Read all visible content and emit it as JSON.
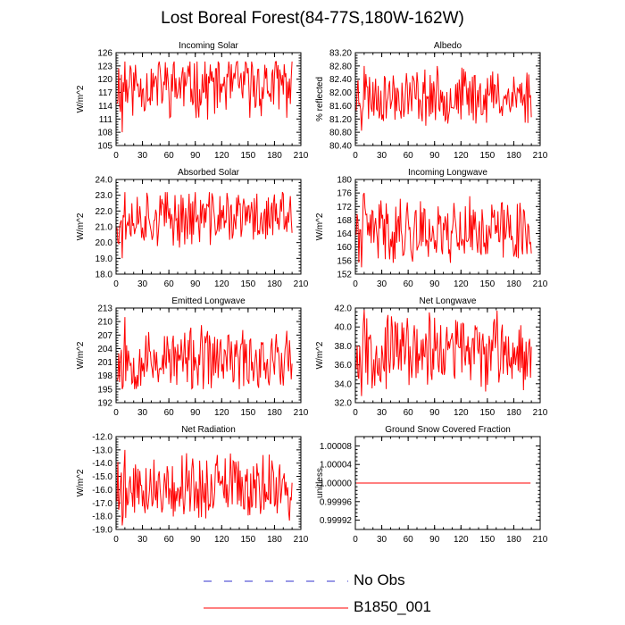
{
  "title": "Lost Boreal Forest(84-77S,180W-162W)",
  "colors": {
    "line": "#ff0000",
    "noobs": "#3333cc",
    "axis": "#000000"
  },
  "legend": [
    {
      "label": "No Obs",
      "style": "dashed",
      "color": "#3333cc"
    },
    {
      "label": "B1850_001",
      "style": "solid",
      "color": "#ff0000"
    }
  ],
  "chart_data": [
    {
      "type": "line",
      "title": "Incoming Solar",
      "ylabel": "W/m^2",
      "xlim": [
        0,
        210
      ],
      "xticks": [
        "0",
        "30",
        "60",
        "90",
        "120",
        "150",
        "180",
        "210"
      ],
      "ylim": [
        105,
        126
      ],
      "yticks": [
        "105",
        "108",
        "111",
        "114",
        "117",
        "120",
        "123",
        "126"
      ],
      "series": [
        {
          "name": "B1850_001",
          "noise_seed": 11,
          "min": 108,
          "max": 124,
          "center": 118.5
        }
      ]
    },
    {
      "type": "line",
      "title": "Albedo",
      "ylabel": "% reflected",
      "xlim": [
        0,
        210
      ],
      "xticks": [
        "0",
        "30",
        "60",
        "90",
        "120",
        "150",
        "180",
        "210"
      ],
      "ylim": [
        80.4,
        83.2
      ],
      "yticks": [
        "80.40",
        "80.80",
        "81.20",
        "81.60",
        "82.00",
        "82.40",
        "82.80",
        "83.20"
      ],
      "series": [
        {
          "name": "B1850_001",
          "noise_seed": 23,
          "min": 80.85,
          "max": 82.8,
          "center": 81.9
        }
      ]
    },
    {
      "type": "line",
      "title": "Absorbed Solar",
      "ylabel": "W/m^2",
      "xlim": [
        0,
        210
      ],
      "xticks": [
        "0",
        "30",
        "60",
        "90",
        "120",
        "150",
        "180",
        "210"
      ],
      "ylim": [
        18.0,
        24.0
      ],
      "yticks": [
        "18.0",
        "19.0",
        "20.0",
        "21.0",
        "22.0",
        "23.0",
        "24.0"
      ],
      "series": [
        {
          "name": "B1850_001",
          "noise_seed": 37,
          "min": 19.0,
          "max": 23.2,
          "center": 21.6
        }
      ]
    },
    {
      "type": "line",
      "title": "Incoming Longwave",
      "ylabel": "W/m^2",
      "xlim": [
        0,
        210
      ],
      "xticks": [
        "0",
        "30",
        "60",
        "90",
        "120",
        "150",
        "180",
        "210"
      ],
      "ylim": [
        152,
        180
      ],
      "yticks": [
        "152",
        "156",
        "160",
        "164",
        "168",
        "172",
        "176",
        "180"
      ],
      "series": [
        {
          "name": "B1850_001",
          "noise_seed": 41,
          "min": 154,
          "max": 176,
          "center": 165
        }
      ]
    },
    {
      "type": "line",
      "title": "Emitted Longwave",
      "ylabel": "W/m^2",
      "xlim": [
        0,
        210
      ],
      "xticks": [
        "0",
        "30",
        "60",
        "90",
        "120",
        "150",
        "180",
        "210"
      ],
      "ylim": [
        192,
        213
      ],
      "yticks": [
        "192",
        "195",
        "198",
        "201",
        "204",
        "207",
        "210",
        "213"
      ],
      "series": [
        {
          "name": "B1850_001",
          "noise_seed": 53,
          "min": 195,
          "max": 211,
          "center": 201.5
        }
      ]
    },
    {
      "type": "line",
      "title": "Net Longwave",
      "ylabel": "W/m^2",
      "xlim": [
        0,
        210
      ],
      "xticks": [
        "0",
        "30",
        "60",
        "90",
        "120",
        "150",
        "180",
        "210"
      ],
      "ylim": [
        32.0,
        42.0
      ],
      "yticks": [
        "32.0",
        "34.0",
        "36.0",
        "38.0",
        "40.0",
        "42.0"
      ],
      "series": [
        {
          "name": "B1850_001",
          "noise_seed": 67,
          "min": 32.7,
          "max": 41.8,
          "center": 37.5
        }
      ]
    },
    {
      "type": "line",
      "title": "Net Radiation",
      "ylabel": "W/m^2",
      "xlim": [
        0,
        210
      ],
      "xticks": [
        "0",
        "30",
        "60",
        "90",
        "120",
        "150",
        "180",
        "210"
      ],
      "ylim": [
        -19.0,
        -12.0
      ],
      "yticks": [
        "-19.0",
        "-18.0",
        "-17.0",
        "-16.0",
        "-15.0",
        "-14.0",
        "-13.0",
        "-12.0"
      ],
      "series": [
        {
          "name": "B1850_001",
          "noise_seed": 79,
          "min": -18.7,
          "max": -13.0,
          "center": -15.8
        }
      ]
    },
    {
      "type": "line",
      "title": "Ground Snow Covered Fraction",
      "ylabel": "unitless",
      "xlim": [
        0,
        210
      ],
      "xticks": [
        "0",
        "30",
        "60",
        "90",
        "120",
        "150",
        "180",
        "210"
      ],
      "ylim": [
        0.9999,
        1.0001
      ],
      "yticks": [
        "0.99992",
        "0.99996",
        "1.00000",
        "1.00004",
        "1.00008"
      ],
      "series": [
        {
          "name": "B1850_001",
          "constant": 1.0,
          "x_end": 199
        }
      ]
    }
  ]
}
